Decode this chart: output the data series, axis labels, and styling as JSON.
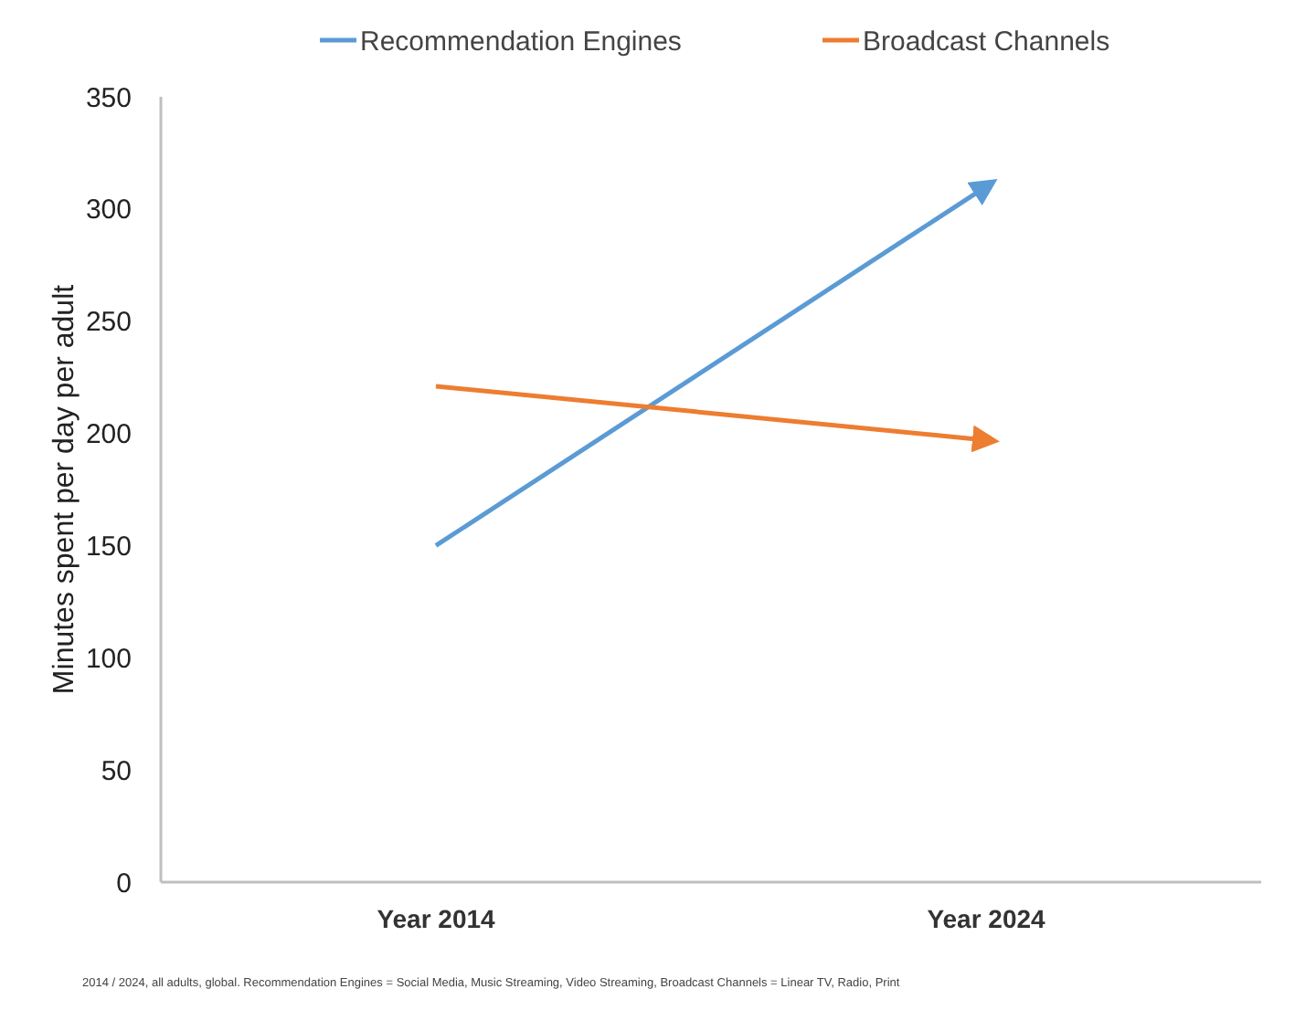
{
  "chart_data": {
    "type": "line",
    "ylabel": "Minutes spent per day per adult",
    "categories": [
      "Year 2014",
      "Year 2024"
    ],
    "series": [
      {
        "name": "Recommendation Engines",
        "color": "#5b9bd5",
        "values": [
          150,
          310
        ]
      },
      {
        "name": "Broadcast Channels",
        "color": "#ed7d31",
        "values": [
          221,
          197
        ]
      }
    ],
    "ylim": [
      0,
      350
    ],
    "yticks": [
      0,
      50,
      100,
      150,
      200,
      250,
      300,
      350
    ],
    "grid": false,
    "legend": "top",
    "annotations": [
      "2014 / 2024, all adults, global. Recommendation Engines = Social Media, Music Streaming, Video Streaming, Broadcast Channels = Linear TV, Radio, Print"
    ]
  }
}
